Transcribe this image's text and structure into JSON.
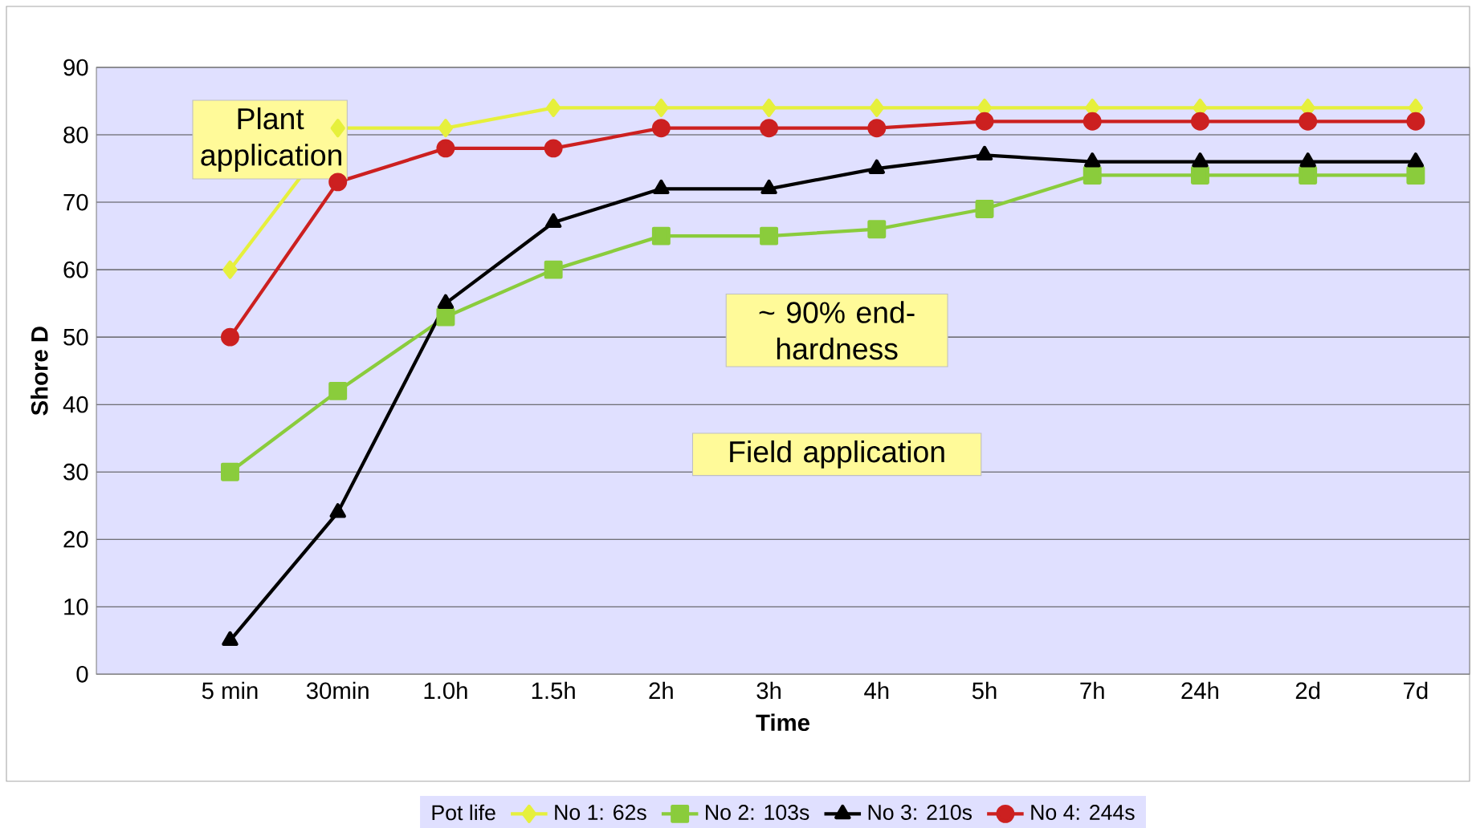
{
  "chart_data": {
    "type": "line",
    "xlabel": "Time",
    "ylabel": "Shore D",
    "legend_title": "Pot life",
    "categories": [
      "5 min",
      "30min",
      "1.0h",
      "1.5h",
      "2h",
      "3h",
      "4h",
      "5h",
      "7h",
      "24h",
      "2d",
      "7d"
    ],
    "series": [
      {
        "name": "No 1: 62s",
        "color": "#e6f03c",
        "marker": "diamond",
        "values": [
          60,
          81,
          81,
          84,
          84,
          84,
          84,
          84,
          84,
          84,
          84,
          84
        ]
      },
      {
        "name": "No 2: 103s",
        "color": "#8acc3c",
        "marker": "square",
        "values": [
          30,
          42,
          53,
          60,
          65,
          65,
          66,
          69,
          74,
          74,
          74,
          74
        ]
      },
      {
        "name": "No 3: 210s",
        "color": "#000000",
        "marker": "triangle",
        "values": [
          5,
          24,
          55,
          67,
          72,
          72,
          75,
          77,
          76,
          76,
          76,
          76
        ]
      },
      {
        "name": "No 4: 244s",
        "color": "#cc2020",
        "marker": "circle",
        "values": [
          50,
          73,
          78,
          78,
          81,
          81,
          81,
          82,
          82,
          82,
          82,
          82
        ]
      }
    ],
    "ylim": [
      0,
      90
    ],
    "yticks": [
      0,
      10,
      20,
      30,
      40,
      50,
      60,
      70,
      80,
      90
    ],
    "grid": "y",
    "legend": "bottom",
    "annotations": [
      "Plant application",
      "~ 90% end-hardness",
      "Field application"
    ]
  }
}
